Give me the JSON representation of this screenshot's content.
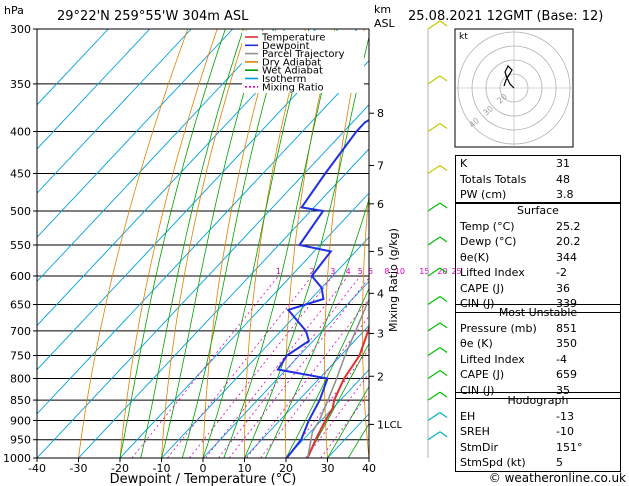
{
  "header": {
    "hpa_label": "hPa",
    "location": "29°22'N  259°55'W  304m  ASL",
    "km_label": "km",
    "asl_label": "ASL",
    "datetime": "25.08.2021  12GMT  (Base: 12)"
  },
  "footer": {
    "copyright": "© weatheronline.co.uk"
  },
  "legend": [
    {
      "label": "Temperature",
      "color": "#e03030"
    },
    {
      "label": "Dewpoint",
      "color": "#2030e0"
    },
    {
      "label": "Parcel Trajectory",
      "color": "#909090"
    },
    {
      "label": "Dry Adiabat",
      "color": "#e08000"
    },
    {
      "label": "Wet Adiabat",
      "color": "#00a000"
    },
    {
      "label": "Isotherm",
      "color": "#00a0e0"
    },
    {
      "label": "Mixing Ratio",
      "color": "#e000c0"
    }
  ],
  "chart_data": {
    "type": "line",
    "title": "",
    "xlabel": "Dewpoint / Temperature (°C)",
    "ylabel": "hPa",
    "ylabel_right": "Mixing Ratio (g/kg)",
    "xlim": [
      -40,
      40
    ],
    "ylim": [
      1000,
      300
    ],
    "log_y": true,
    "x_ticks": [
      "-40",
      "-30",
      "-20",
      "-10",
      "0",
      "10",
      "20",
      "30",
      "40"
    ],
    "pressure_levels": [
      "300",
      "350",
      "400",
      "450",
      "500",
      "550",
      "600",
      "650",
      "700",
      "750",
      "800",
      "850",
      "900",
      "950",
      "1000"
    ],
    "km_ticks": [
      {
        "p": 380,
        "label": "8"
      },
      {
        "p": 440,
        "label": "7"
      },
      {
        "p": 490,
        "label": "6"
      },
      {
        "p": 560,
        "label": "5"
      },
      {
        "p": 630,
        "label": "4"
      },
      {
        "p": 705,
        "label": "3"
      },
      {
        "p": 795,
        "label": "2"
      },
      {
        "p": 910,
        "label": "1"
      }
    ],
    "lcl_label": "LCL",
    "mixing_ratio_labels": [
      "1",
      "2",
      "3",
      "4",
      "5",
      "6",
      "8",
      "10",
      "15",
      "20",
      "25"
    ],
    "series": [
      {
        "name": "Temperature",
        "color": "#e03030",
        "points": [
          [
            1000,
            25.2
          ],
          [
            950,
            23
          ],
          [
            900,
            21
          ],
          [
            870,
            20
          ],
          [
            850,
            18.5
          ],
          [
            800,
            16
          ],
          [
            750,
            14.5
          ],
          [
            700,
            11
          ],
          [
            650,
            7
          ],
          [
            600,
            3
          ],
          [
            550,
            -1.5
          ],
          [
            500,
            -5.5
          ],
          [
            470,
            -6
          ],
          [
            450,
            -8
          ],
          [
            400,
            -14
          ],
          [
            350,
            -21
          ],
          [
            300,
            -30
          ]
        ]
      },
      {
        "name": "Dewpoint",
        "color": "#2030e0",
        "points": [
          [
            1000,
            20.2
          ],
          [
            950,
            19.5
          ],
          [
            900,
            17
          ],
          [
            850,
            15
          ],
          [
            800,
            12
          ],
          [
            780,
            -2
          ],
          [
            750,
            -3
          ],
          [
            720,
            -1
          ],
          [
            700,
            -4
          ],
          [
            660,
            -13
          ],
          [
            640,
            -7
          ],
          [
            620,
            -10
          ],
          [
            600,
            -15
          ],
          [
            560,
            -16
          ],
          [
            550,
            -25
          ],
          [
            500,
            -27
          ],
          [
            495,
            -33
          ],
          [
            450,
            -35
          ],
          [
            400,
            -37
          ],
          [
            390,
            -37
          ],
          [
            350,
            -30
          ],
          [
            340,
            -33
          ],
          [
            300,
            -30
          ]
        ]
      },
      {
        "name": "Parcel Trajectory",
        "color": "#909090",
        "points": [
          [
            1000,
            25.2
          ],
          [
            930,
            20.5
          ],
          [
            900,
            19.5
          ],
          [
            850,
            17
          ],
          [
            800,
            14.2
          ],
          [
            750,
            11
          ],
          [
            700,
            8
          ],
          [
            650,
            4.7
          ],
          [
            600,
            1.3
          ],
          [
            550,
            -2.5
          ],
          [
            500,
            -6.5
          ],
          [
            450,
            -11
          ],
          [
            400,
            -16
          ],
          [
            350,
            -22
          ],
          [
            300,
            -30
          ]
        ]
      }
    ]
  },
  "hodograph": {
    "label": "kt",
    "ring_labels": [
      "40",
      "30",
      "20"
    ]
  },
  "stats": {
    "k_label": "K",
    "k_value": "31",
    "tt_label": "Totals Totals",
    "tt_value": "48",
    "pw_label": "PW (cm)",
    "pw_value": "3.8"
  },
  "surface": {
    "title": "Surface",
    "rows": [
      {
        "label": "Temp (°C)",
        "value": "25.2"
      },
      {
        "label": "Dewp (°C)",
        "value": "20.2"
      },
      {
        "label": "θe(K)",
        "value": "344"
      },
      {
        "label": "Lifted Index",
        "value": "-2"
      },
      {
        "label": "CAPE (J)",
        "value": "36"
      },
      {
        "label": "CIN (J)",
        "value": "339"
      }
    ]
  },
  "most_unstable": {
    "title": "Most Unstable",
    "rows": [
      {
        "label": "Pressure (mb)",
        "value": "851"
      },
      {
        "label": "θe (K)",
        "value": "350"
      },
      {
        "label": "Lifted Index",
        "value": "-4"
      },
      {
        "label": "CAPE (J)",
        "value": "659"
      },
      {
        "label": "CIN (J)",
        "value": "35"
      }
    ]
  },
  "hodo_table": {
    "title": "Hodograph",
    "rows": [
      {
        "label": "EH",
        "value": "-13"
      },
      {
        "label": "SREH",
        "value": "-10"
      },
      {
        "label": "StmDir",
        "value": "151°"
      },
      {
        "label": "StmSpd (kt)",
        "value": "5"
      }
    ]
  }
}
